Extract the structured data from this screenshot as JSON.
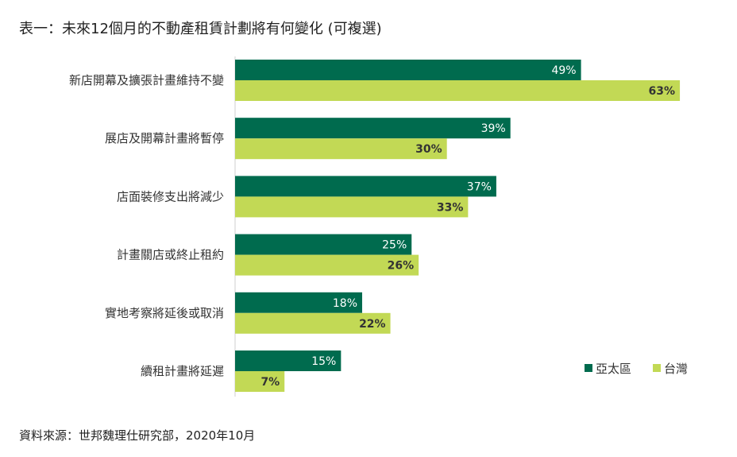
{
  "title": "表一：未來12個月的不動產租賃計劃將有何變化 (可複選)",
  "source": "資料來源：世邦魏理仕研究部，2020年10月",
  "colors": {
    "asia_pacific": "#006b4e",
    "taiwan": "#c2d955"
  },
  "chart_data": {
    "type": "bar",
    "orientation": "horizontal",
    "categories": [
      "新店開幕及擴張計畫維持不變",
      "展店及開幕計畫將暫停",
      "店面裝修支出將減少",
      "計畫關店或終止租約",
      "實地考察將延後或取消",
      "續租計畫將延遲"
    ],
    "series": [
      {
        "name": "亞太區",
        "values": [
          49,
          39,
          37,
          25,
          18,
          15
        ],
        "labels": [
          "49%",
          "39%",
          "37%",
          "25%",
          "18%",
          "15%"
        ]
      },
      {
        "name": "台灣",
        "values": [
          63,
          30,
          33,
          26,
          22,
          7
        ],
        "labels": [
          "63%",
          "30%",
          "33%",
          "26%",
          "22%",
          "7%"
        ]
      }
    ],
    "xlim": [
      0,
      70
    ],
    "legend": "bottom-right",
    "grid": false
  }
}
